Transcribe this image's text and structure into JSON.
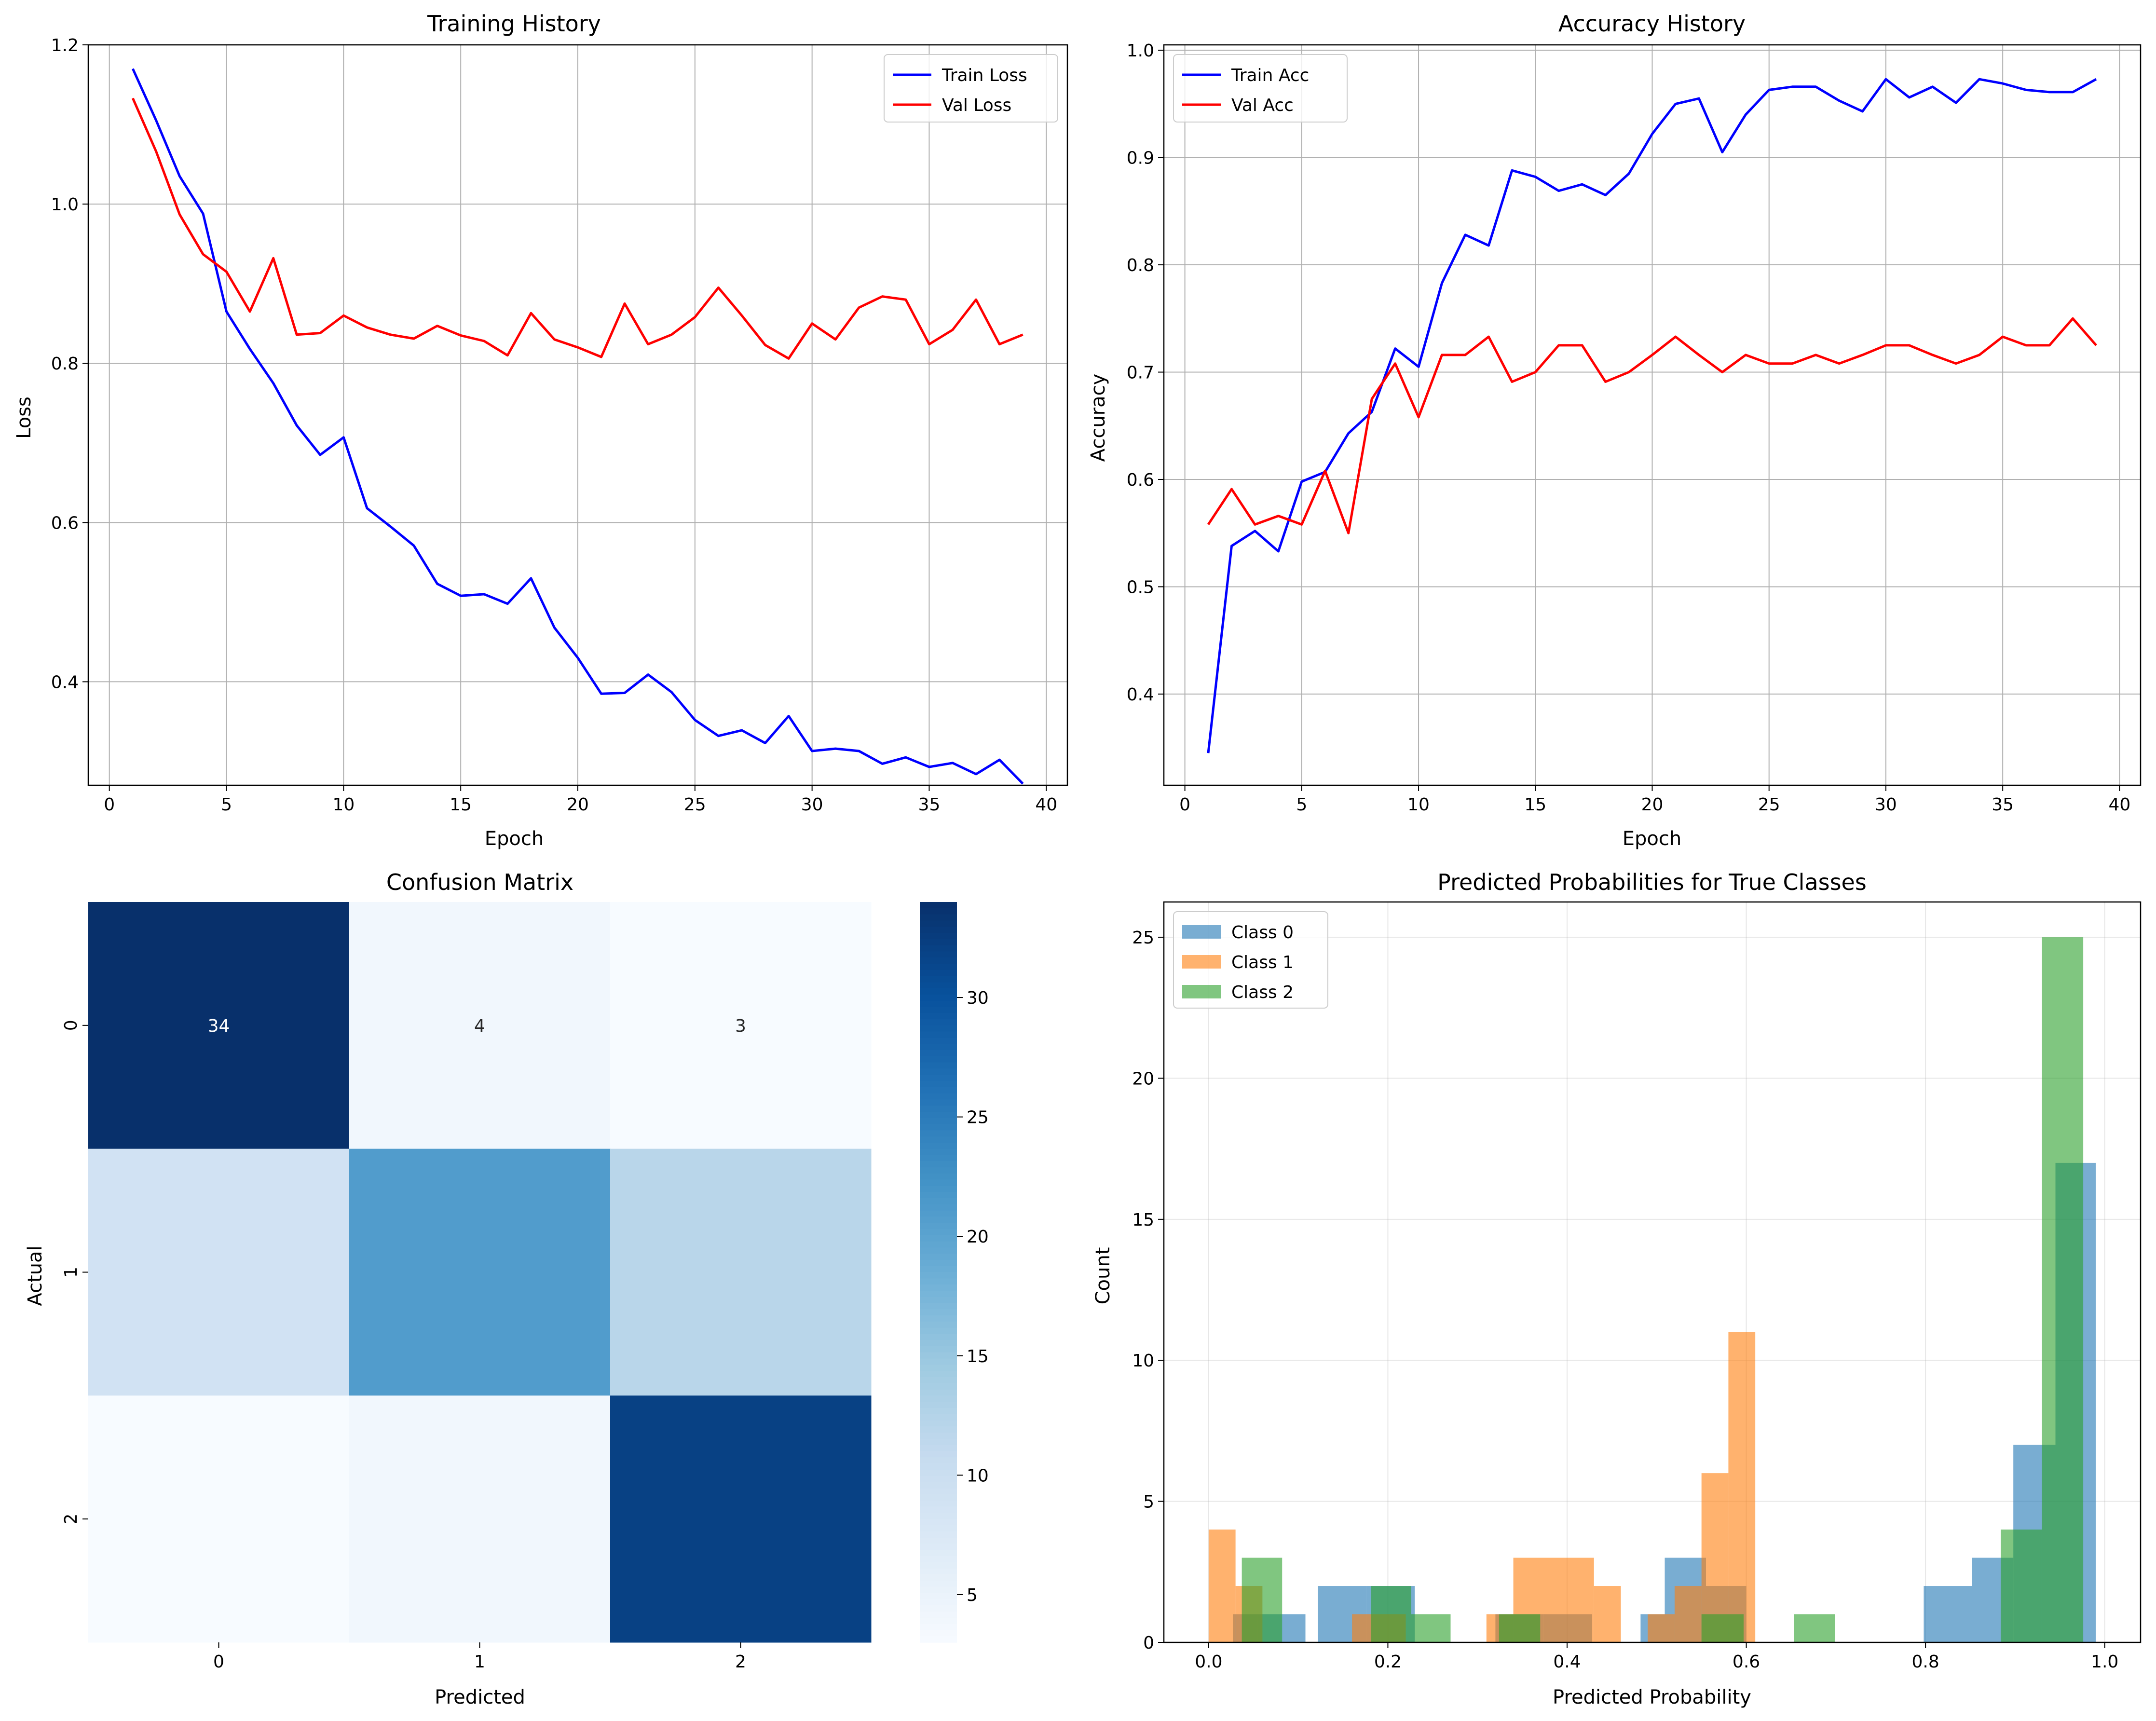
{
  "colors": {
    "train": "#0000ff",
    "val": "#ff0000",
    "grid": "#b0b0b0",
    "class0": "#1f77b4",
    "class1": "#ff7f0e",
    "class2": "#2ca02c",
    "cm_low": "#f7fbff",
    "cm_high": "#08306b"
  },
  "chart_data": [
    {
      "type": "line",
      "title": "Training History",
      "xlabel": "Epoch",
      "ylabel": "Loss",
      "xlim": [
        -0.9,
        40.9
      ],
      "ylim": [
        0.27,
        1.2
      ],
      "xticks": [
        0,
        5,
        10,
        15,
        20,
        25,
        30,
        35,
        40
      ],
      "yticks": [
        0.4,
        0.6,
        0.8,
        1.0,
        1.2
      ],
      "ytick_labels": [
        "0.4",
        "0.6",
        "0.8",
        "1.0",
        "1.2"
      ],
      "grid": true,
      "legend": "top-right",
      "x": [
        1,
        2,
        3,
        4,
        5,
        6,
        7,
        8,
        9,
        10,
        11,
        12,
        13,
        14,
        15,
        16,
        17,
        18,
        19,
        20,
        21,
        22,
        23,
        24,
        25,
        26,
        27,
        28,
        29,
        30,
        31,
        32,
        33,
        34,
        35,
        36,
        37,
        38,
        39
      ],
      "series": [
        {
          "name": "Train Loss",
          "color_key": "train",
          "values": [
            1.17,
            1.105,
            1.035,
            0.988,
            0.865,
            0.818,
            0.775,
            0.722,
            0.685,
            0.707,
            0.618,
            0.595,
            0.571,
            0.523,
            0.508,
            0.51,
            0.498,
            0.53,
            0.468,
            0.43,
            0.385,
            0.386,
            0.409,
            0.387,
            0.352,
            0.332,
            0.339,
            0.323,
            0.357,
            0.313,
            0.316,
            0.313,
            0.297,
            0.305,
            0.293,
            0.298,
            0.284,
            0.302,
            0.272
          ]
        },
        {
          "name": "Val Loss",
          "color_key": "val",
          "values": [
            1.133,
            1.066,
            0.987,
            0.937,
            0.915,
            0.865,
            0.932,
            0.836,
            0.838,
            0.86,
            0.845,
            0.836,
            0.831,
            0.847,
            0.835,
            0.828,
            0.81,
            0.863,
            0.83,
            0.82,
            0.808,
            0.875,
            0.824,
            0.836,
            0.858,
            0.895,
            0.86,
            0.823,
            0.806,
            0.85,
            0.83,
            0.87,
            0.884,
            0.88,
            0.824,
            0.842,
            0.88,
            0.824,
            0.836
          ]
        }
      ]
    },
    {
      "type": "line",
      "title": "Accuracy History",
      "xlabel": "Epoch",
      "ylabel": "Accuracy",
      "xlim": [
        -0.9,
        40.9
      ],
      "ylim": [
        0.315,
        1.005
      ],
      "xticks": [
        0,
        5,
        10,
        15,
        20,
        25,
        30,
        35,
        40
      ],
      "yticks": [
        0.4,
        0.5,
        0.6,
        0.7,
        0.8,
        0.9,
        1.0
      ],
      "ytick_labels": [
        "0.4",
        "0.5",
        "0.6",
        "0.7",
        "0.8",
        "0.9",
        "1.0"
      ],
      "grid": true,
      "legend": "top-left",
      "x": [
        1,
        2,
        3,
        4,
        5,
        6,
        7,
        8,
        9,
        10,
        11,
        12,
        13,
        14,
        15,
        16,
        17,
        18,
        19,
        20,
        21,
        22,
        23,
        24,
        25,
        26,
        27,
        28,
        29,
        30,
        31,
        32,
        33,
        34,
        35,
        36,
        37,
        38,
        39
      ],
      "series": [
        {
          "name": "Train Acc",
          "color_key": "train",
          "values": [
            0.345,
            0.538,
            0.552,
            0.533,
            0.598,
            0.607,
            0.643,
            0.663,
            0.722,
            0.705,
            0.783,
            0.828,
            0.818,
            0.888,
            0.882,
            0.869,
            0.875,
            0.865,
            0.885,
            0.922,
            0.95,
            0.955,
            0.905,
            0.94,
            0.963,
            0.966,
            0.966,
            0.953,
            0.943,
            0.973,
            0.956,
            0.966,
            0.951,
            0.973,
            0.969,
            0.963,
            0.961,
            0.961,
            0.973
          ]
        },
        {
          "name": "Val Acc",
          "color_key": "val",
          "values": [
            0.558,
            0.591,
            0.558,
            0.566,
            0.558,
            0.608,
            0.55,
            0.675,
            0.708,
            0.658,
            0.716,
            0.716,
            0.733,
            0.691,
            0.7,
            0.725,
            0.725,
            0.691,
            0.7,
            0.716,
            0.733,
            0.716,
            0.7,
            0.716,
            0.708,
            0.708,
            0.716,
            0.708,
            0.716,
            0.725,
            0.725,
            0.716,
            0.708,
            0.716,
            0.733,
            0.725,
            0.725,
            0.75,
            0.725
          ]
        }
      ]
    },
    {
      "type": "heatmap",
      "title": "Confusion Matrix",
      "xlabel": "Predicted",
      "ylabel": "Actual",
      "x_categories": [
        "0",
        "1",
        "2"
      ],
      "y_categories": [
        "0",
        "1",
        "2"
      ],
      "values": [
        [
          34,
          4,
          3
        ],
        [
          9,
          21,
          12
        ],
        [
          3,
          4,
          32
        ]
      ],
      "annotated": [
        {
          "row": 0,
          "col": 0,
          "label": "34"
        },
        {
          "row": 0,
          "col": 1,
          "label": "4"
        },
        {
          "row": 0,
          "col": 2,
          "label": "3"
        }
      ],
      "colorbar": {
        "range": [
          3,
          34
        ],
        "ticks": [
          5,
          10,
          15,
          20,
          25,
          30
        ],
        "tick_labels": [
          "5",
          "10",
          "15",
          "20",
          "25",
          "30"
        ],
        "colormap": "Blues"
      }
    },
    {
      "type": "bar",
      "title": "Predicted Probabilities for True Classes",
      "xlabel": "Predicted Probability",
      "ylabel": "Count",
      "xlim": [
        -0.05,
        1.04
      ],
      "ylim": [
        0,
        26.25
      ],
      "xticks": [
        0.0,
        0.2,
        0.4,
        0.6,
        0.8,
        1.0
      ],
      "xtick_labels": [
        "0.0",
        "0.2",
        "0.4",
        "0.6",
        "0.8",
        "1.0"
      ],
      "yticks": [
        0,
        5,
        10,
        15,
        20,
        25
      ],
      "ytick_labels": [
        "0",
        "5",
        "10",
        "15",
        "20",
        "25"
      ],
      "grid": true,
      "legend": "top-left",
      "series": [
        {
          "name": "Class 0",
          "color_key": "class0",
          "bins": [
            [
              0.027,
              0.054,
              1
            ],
            [
              0.054,
              0.081,
              1
            ],
            [
              0.081,
              0.108,
              1
            ],
            [
              0.122,
              0.176,
              2
            ],
            [
              0.176,
              0.23,
              2
            ],
            [
              0.32,
              0.374,
              1
            ],
            [
              0.374,
              0.428,
              1
            ],
            [
              0.482,
              0.509,
              1
            ],
            [
              0.509,
              0.555,
              3
            ],
            [
              0.555,
              0.6,
              2
            ],
            [
              0.798,
              0.852,
              2
            ],
            [
              0.852,
              0.898,
              3
            ],
            [
              0.898,
              0.945,
              7
            ],
            [
              0.945,
              0.99,
              17
            ]
          ]
        },
        {
          "name": "Class 1",
          "color_key": "class1",
          "bins": [
            [
              0.0,
              0.03,
              4
            ],
            [
              0.03,
              0.06,
              2
            ],
            [
              0.16,
              0.19,
              1
            ],
            [
              0.19,
              0.22,
              1
            ],
            [
              0.31,
              0.34,
              1
            ],
            [
              0.34,
              0.43,
              3
            ],
            [
              0.43,
              0.46,
              2
            ],
            [
              0.49,
              0.52,
              1
            ],
            [
              0.52,
              0.55,
              2
            ],
            [
              0.55,
              0.58,
              6
            ],
            [
              0.58,
              0.61,
              11
            ]
          ]
        },
        {
          "name": "Class 2",
          "color_key": "class2",
          "bins": [
            [
              0.037,
              0.082,
              3
            ],
            [
              0.181,
              0.226,
              2
            ],
            [
              0.226,
              0.27,
              1
            ],
            [
              0.324,
              0.37,
              1
            ],
            [
              0.55,
              0.597,
              1
            ],
            [
              0.653,
              0.699,
              1
            ],
            [
              0.884,
              0.93,
              4
            ],
            [
              0.93,
              0.976,
              25
            ]
          ]
        }
      ]
    }
  ]
}
